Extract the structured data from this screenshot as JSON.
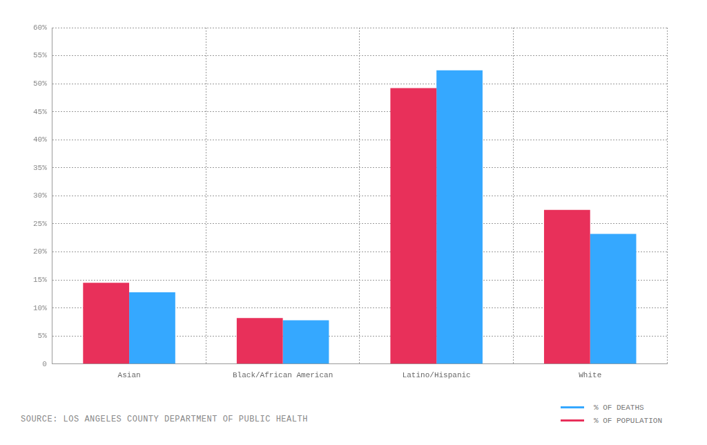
{
  "chart_data": {
    "type": "bar",
    "categories": [
      "Asian",
      "Black/African American",
      "Latino/Hispanic",
      "White"
    ],
    "series": [
      {
        "name": "% OF POPULATION",
        "color": "#e8305a",
        "values": [
          14.5,
          8.2,
          49.2,
          27.5
        ]
      },
      {
        "name": "% OF DEATHS",
        "color": "#35a8ff",
        "values": [
          12.8,
          7.8,
          52.4,
          23.2
        ]
      }
    ],
    "ylim": [
      0,
      60
    ],
    "yticks": [
      0,
      {
        "value": 5,
        "label": "5%"
      },
      {
        "value": 10,
        "label": "10%"
      },
      {
        "value": 15,
        "label": "15%"
      },
      {
        "value": 20,
        "label": "20%"
      },
      {
        "value": 25,
        "label": "25%"
      },
      {
        "value": 30,
        "label": "30%"
      },
      {
        "value": 35,
        "label": "35%"
      },
      {
        "value": 40,
        "label": "40%"
      },
      {
        "value": 45,
        "label": "45%"
      },
      {
        "value": 50,
        "label": "50%"
      },
      {
        "value": 55,
        "label": "55%"
      },
      {
        "value": 60,
        "label": "60%"
      }
    ],
    "grid": true,
    "legend": "bottom right",
    "source": "SOURCE: LOS ANGELES COUNTY DEPARTMENT OF PUBLIC HEALTH"
  }
}
